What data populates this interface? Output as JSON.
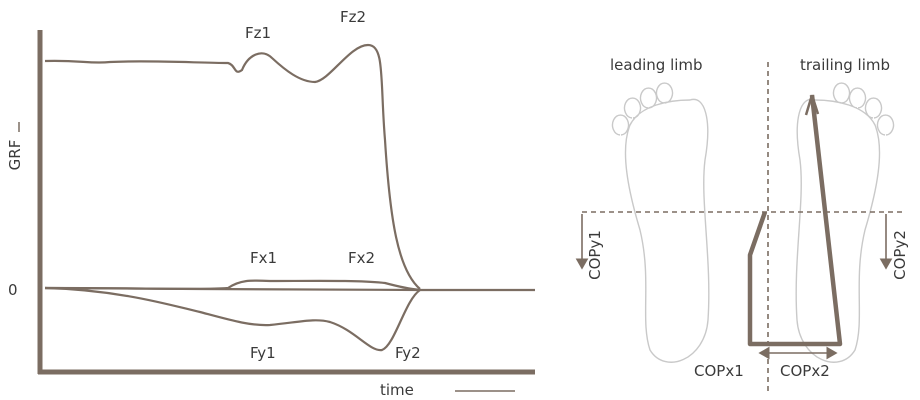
{
  "plot": {
    "y_axis_label": "GRF",
    "zero_label": "0",
    "x_axis_label": "time",
    "curve_labels": {
      "fz1": "Fz1",
      "fz2": "Fz2",
      "fx1": "Fx1",
      "fx2": "Fx2",
      "fy1": "Fy1",
      "fy2": "Fy2"
    }
  },
  "feet": {
    "leading": "leading limb",
    "trailing": "trailing limb",
    "copy1": "COPy1",
    "copy2": "COPy2",
    "copx1": "COPx1",
    "copx2": "COPx2"
  }
}
